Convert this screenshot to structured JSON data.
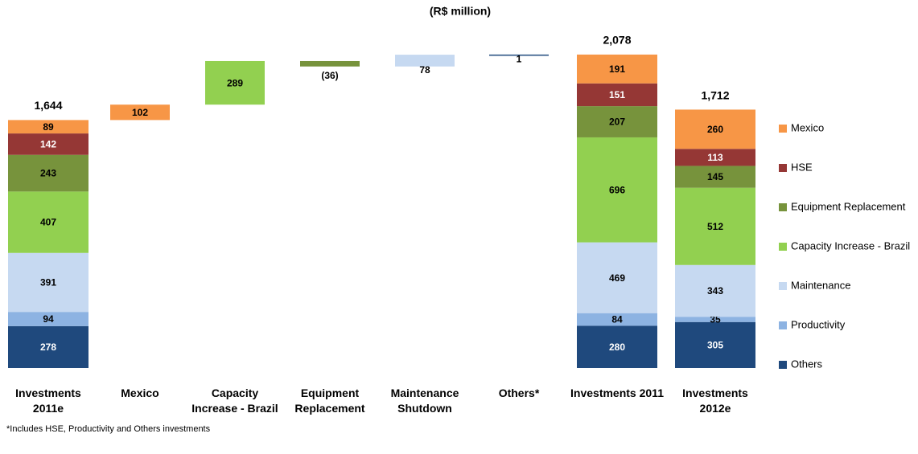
{
  "chart_data": {
    "type": "waterfall",
    "title": "(R$ million)",
    "footnote": "*Includes HSE, Productivity and Others investments",
    "categories": [
      "Investments 2011e",
      "Mexico",
      "Capacity Increase - Brazil",
      "Equipment Replacement",
      "Maintenance Shutdown",
      "Others*",
      "Investments 2011",
      "Investments 2012e"
    ],
    "series": [
      {
        "name": "Mexico",
        "color": "#f79646",
        "values": [
          89,
          null,
          null,
          null,
          null,
          null,
          191,
          260
        ]
      },
      {
        "name": "HSE",
        "color": "#953735",
        "values": [
          142,
          null,
          null,
          null,
          null,
          null,
          151,
          113
        ]
      },
      {
        "name": "Equipment Replacement",
        "color": "#77933c",
        "values": [
          243,
          null,
          null,
          null,
          null,
          null,
          207,
          145
        ]
      },
      {
        "name": "Capacity Increase - Brazil",
        "color": "#92d050",
        "values": [
          407,
          null,
          null,
          null,
          null,
          null,
          696,
          512
        ]
      },
      {
        "name": "Maintenance",
        "color": "#c6d9f1",
        "values": [
          391,
          null,
          null,
          null,
          null,
          null,
          469,
          343
        ]
      },
      {
        "name": "Productivity",
        "color": "#8db3e2",
        "values": [
          94,
          null,
          null,
          null,
          null,
          null,
          84,
          35
        ]
      },
      {
        "name": "Others",
        "color": "#1f497d",
        "values": [
          278,
          null,
          null,
          null,
          null,
          null,
          280,
          305
        ]
      }
    ],
    "steps": {
      "values": [
        null,
        102,
        289,
        -36,
        78,
        1,
        null,
        null
      ],
      "value_labels": [
        null,
        null,
        null,
        "(36)",
        null,
        null,
        null,
        null
      ],
      "colors": [
        null,
        "#f79646",
        "#92d050",
        "#77933c",
        "#c6d9f1",
        "#1f497d",
        null,
        null
      ]
    },
    "totals": {
      "values": [
        1644,
        null,
        null,
        null,
        null,
        null,
        2078,
        1712
      ],
      "value_labels": [
        "1,644",
        null,
        null,
        null,
        null,
        null,
        "2,078",
        "1,712"
      ]
    },
    "ylim": [
      0,
      2200
    ]
  }
}
